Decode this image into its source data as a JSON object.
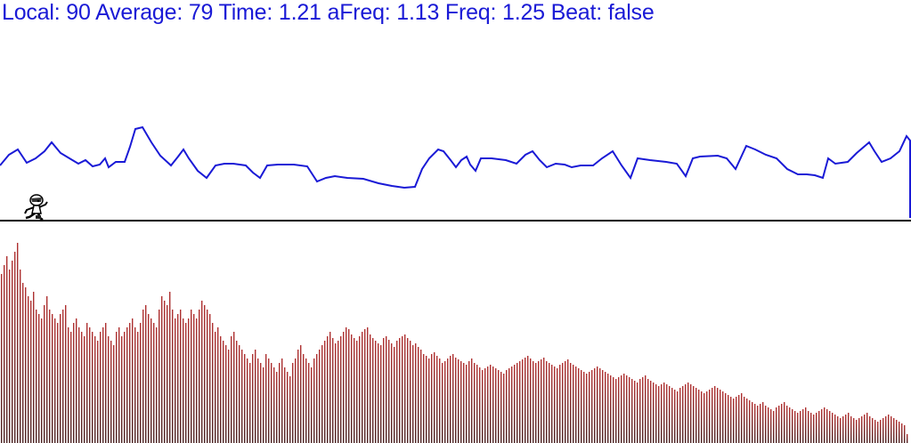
{
  "hud": {
    "local_label": "Local:",
    "local_value": "90",
    "average_label": "Average:",
    "average_value": "79",
    "time_label": "Time:",
    "time_value": "1.21",
    "afreq_label": "aFreq:",
    "afreq_value": "1.13",
    "freq_label": "Freq:",
    "freq_value": "1.25",
    "beat_label": "Beat:",
    "beat_value": "false"
  },
  "colors": {
    "hud_text": "#1a1ad6",
    "waveform": "#1a1ad6",
    "ground": "#000000",
    "spectrum_top": "#b03030",
    "spectrum_bottom": "#4a2020"
  },
  "icons": {
    "player": "running-runner-icon"
  },
  "waveform": [
    [
      0,
      186
    ],
    [
      10,
      174
    ],
    [
      20,
      168
    ],
    [
      30,
      183
    ],
    [
      40,
      178
    ],
    [
      50,
      170
    ],
    [
      58,
      160
    ],
    [
      68,
      172
    ],
    [
      78,
      178
    ],
    [
      88,
      184
    ],
    [
      96,
      180
    ],
    [
      104,
      187
    ],
    [
      112,
      185
    ],
    [
      118,
      178
    ],
    [
      122,
      188
    ],
    [
      130,
      182
    ],
    [
      140,
      182
    ],
    [
      146,
      165
    ],
    [
      152,
      145
    ],
    [
      160,
      143
    ],
    [
      170,
      160
    ],
    [
      180,
      175
    ],
    [
      192,
      186
    ],
    [
      200,
      176
    ],
    [
      206,
      168
    ],
    [
      212,
      178
    ],
    [
      222,
      192
    ],
    [
      232,
      200
    ],
    [
      242,
      186
    ],
    [
      252,
      184
    ],
    [
      262,
      184
    ],
    [
      276,
      186
    ],
    [
      284,
      194
    ],
    [
      292,
      200
    ],
    [
      300,
      186
    ],
    [
      312,
      185
    ],
    [
      330,
      185
    ],
    [
      345,
      187
    ],
    [
      356,
      204
    ],
    [
      366,
      200
    ],
    [
      376,
      198
    ],
    [
      390,
      200
    ],
    [
      408,
      201
    ],
    [
      425,
      206
    ],
    [
      440,
      209
    ],
    [
      454,
      211
    ],
    [
      466,
      210
    ],
    [
      474,
      190
    ],
    [
      482,
      178
    ],
    [
      492,
      168
    ],
    [
      498,
      170
    ],
    [
      506,
      180
    ],
    [
      512,
      188
    ],
    [
      518,
      180
    ],
    [
      524,
      176
    ],
    [
      528,
      185
    ],
    [
      534,
      192
    ],
    [
      540,
      178
    ],
    [
      552,
      178
    ],
    [
      568,
      180
    ],
    [
      580,
      184
    ],
    [
      590,
      174
    ],
    [
      598,
      170
    ],
    [
      606,
      180
    ],
    [
      614,
      188
    ],
    [
      624,
      184
    ],
    [
      634,
      185
    ],
    [
      642,
      188
    ],
    [
      652,
      186
    ],
    [
      666,
      186
    ],
    [
      676,
      178
    ],
    [
      688,
      170
    ],
    [
      698,
      186
    ],
    [
      708,
      200
    ],
    [
      716,
      178
    ],
    [
      730,
      180
    ],
    [
      748,
      182
    ],
    [
      760,
      184
    ],
    [
      770,
      198
    ],
    [
      778,
      178
    ],
    [
      786,
      176
    ],
    [
      806,
      175
    ],
    [
      816,
      178
    ],
    [
      826,
      190
    ],
    [
      838,
      164
    ],
    [
      848,
      168
    ],
    [
      860,
      174
    ],
    [
      872,
      178
    ],
    [
      884,
      190
    ],
    [
      896,
      196
    ],
    [
      906,
      196
    ],
    [
      915,
      197
    ],
    [
      924,
      200
    ],
    [
      930,
      178
    ],
    [
      938,
      184
    ],
    [
      952,
      182
    ],
    [
      962,
      172
    ],
    [
      976,
      160
    ],
    [
      982,
      170
    ],
    [
      990,
      182
    ],
    [
      1000,
      178
    ],
    [
      1010,
      170
    ],
    [
      1018,
      153
    ],
    [
      1022,
      158
    ],
    [
      1022,
      245
    ]
  ],
  "ground_y": 248,
  "spectrum_heights": [
    190,
    200,
    210,
    195,
    205,
    215,
    225,
    195,
    180,
    175,
    165,
    160,
    170,
    150,
    145,
    140,
    155,
    165,
    150,
    145,
    140,
    135,
    145,
    150,
    155,
    130,
    125,
    135,
    140,
    130,
    125,
    120,
    135,
    130,
    125,
    120,
    115,
    125,
    130,
    135,
    120,
    115,
    110,
    125,
    130,
    120,
    125,
    130,
    135,
    140,
    130,
    125,
    135,
    150,
    155,
    145,
    140,
    135,
    130,
    150,
    165,
    160,
    155,
    170,
    150,
    140,
    145,
    150,
    140,
    135,
    140,
    150,
    145,
    140,
    150,
    160,
    155,
    150,
    145,
    135,
    125,
    130,
    120,
    115,
    110,
    105,
    120,
    125,
    115,
    110,
    105,
    100,
    95,
    90,
    100,
    105,
    95,
    90,
    85,
    100,
    95,
    90,
    85,
    80,
    90,
    95,
    85,
    80,
    75,
    90,
    95,
    105,
    110,
    100,
    95,
    90,
    85,
    95,
    100,
    105,
    110,
    115,
    120,
    125,
    118,
    112,
    115,
    120,
    125,
    130,
    128,
    122,
    118,
    115,
    120,
    125,
    128,
    130,
    122,
    118,
    115,
    112,
    110,
    118,
    120,
    116,
    112,
    108,
    115,
    118,
    120,
    122,
    118,
    115,
    110,
    112,
    108,
    105,
    100,
    98,
    95,
    100,
    102,
    98,
    95,
    90,
    92,
    95,
    98,
    100,
    96,
    94,
    92,
    90,
    88,
    92,
    95,
    90,
    88,
    85,
    82,
    84,
    86,
    88,
    86,
    84,
    82,
    80,
    78,
    82,
    84,
    86,
    88,
    90,
    92,
    94,
    96,
    98,
    95,
    92,
    90,
    92,
    94,
    96,
    92,
    90,
    88,
    86,
    84,
    88,
    90,
    92,
    94,
    90,
    88,
    86,
    84,
    82,
    80,
    78,
    80,
    82,
    84,
    86,
    84,
    82,
    80,
    78,
    76,
    74,
    72,
    74,
    76,
    78,
    76,
    74,
    72,
    70,
    68,
    72,
    74,
    76,
    72,
    70,
    68,
    66,
    64,
    66,
    68,
    66,
    64,
    62,
    60,
    58,
    62,
    64,
    66,
    68,
    66,
    64,
    62,
    60,
    58,
    56,
    58,
    60,
    62,
    64,
    62,
    60,
    58,
    56,
    54,
    52,
    50,
    52,
    54,
    56,
    52,
    50,
    48,
    46,
    44,
    42,
    44,
    46,
    42,
    40,
    38,
    36,
    40,
    42,
    44,
    46,
    42,
    40,
    38,
    36,
    34,
    36,
    38,
    40,
    36,
    34,
    32,
    34,
    36,
    38,
    40,
    38,
    36,
    34,
    32,
    30,
    28,
    30,
    32,
    34,
    30,
    28,
    26,
    28,
    30,
    32,
    34,
    30,
    28,
    26,
    24,
    26,
    28,
    30,
    32,
    30,
    28,
    26,
    24,
    22,
    20,
    10
  ]
}
